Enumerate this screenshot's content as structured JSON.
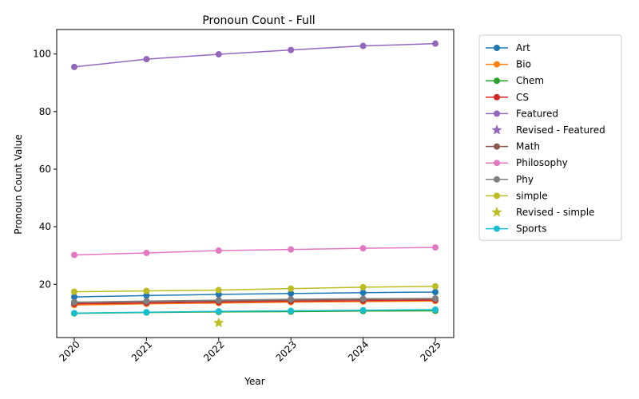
{
  "chart_data": {
    "type": "line",
    "title": "Pronoun Count - Full",
    "xlabel": "Year",
    "ylabel": "Pronoun Count Value",
    "x": [
      "2020",
      "2021",
      "2022",
      "2023",
      "2024",
      "2025"
    ],
    "ylim": [
      1.5,
      108.5
    ],
    "yticks": [
      20,
      40,
      60,
      80,
      100
    ],
    "grid": false,
    "legend_placement": "outside-right",
    "series": [
      {
        "name": "Art",
        "kind": "line",
        "color": "#1f77b4",
        "values": [
          15.6,
          16.1,
          16.5,
          16.8,
          17.1,
          17.3
        ]
      },
      {
        "name": "Bio",
        "kind": "line",
        "color": "#ff7f0e",
        "values": [
          12.8,
          13.2,
          13.5,
          13.8,
          14.0,
          14.2
        ]
      },
      {
        "name": "Chem",
        "kind": "line",
        "color": "#2ca02c",
        "values": [
          9.9,
          10.2,
          10.4,
          10.5,
          10.7,
          10.8
        ]
      },
      {
        "name": "CS",
        "kind": "line",
        "color": "#d62728",
        "values": [
          13.2,
          13.5,
          13.8,
          14.1,
          14.3,
          14.5
        ]
      },
      {
        "name": "Featured",
        "kind": "line",
        "color": "#9467bd",
        "values": [
          95.5,
          98.2,
          99.9,
          101.4,
          102.8,
          103.6
        ]
      },
      {
        "name": "Revised - Featured",
        "kind": "star",
        "color": "#9467bd",
        "values": [
          null,
          null,
          null,
          null,
          null,
          null
        ]
      },
      {
        "name": "Math",
        "kind": "line",
        "color": "#8c564b",
        "values": [
          13.6,
          13.9,
          14.2,
          14.5,
          14.7,
          14.9
        ]
      },
      {
        "name": "Philosophy",
        "kind": "line",
        "color": "#e377c2",
        "values": [
          30.2,
          30.9,
          31.7,
          32.1,
          32.5,
          32.8
        ]
      },
      {
        "name": "Phy",
        "kind": "line",
        "color": "#7f7f7f",
        "values": [
          13.8,
          14.2,
          14.5,
          14.8,
          15.0,
          15.1
        ]
      },
      {
        "name": "simple",
        "kind": "line",
        "color": "#bcbd22",
        "values": [
          17.4,
          17.7,
          18.0,
          18.5,
          19.0,
          19.3
        ]
      },
      {
        "name": "Revised - simple",
        "kind": "star",
        "color": "#bcbd22",
        "values": [
          null,
          null,
          6.6,
          null,
          null,
          null
        ]
      },
      {
        "name": "Sports",
        "kind": "line",
        "color": "#17becf",
        "values": [
          10.0,
          10.3,
          10.6,
          10.8,
          11.0,
          11.2
        ]
      }
    ]
  }
}
